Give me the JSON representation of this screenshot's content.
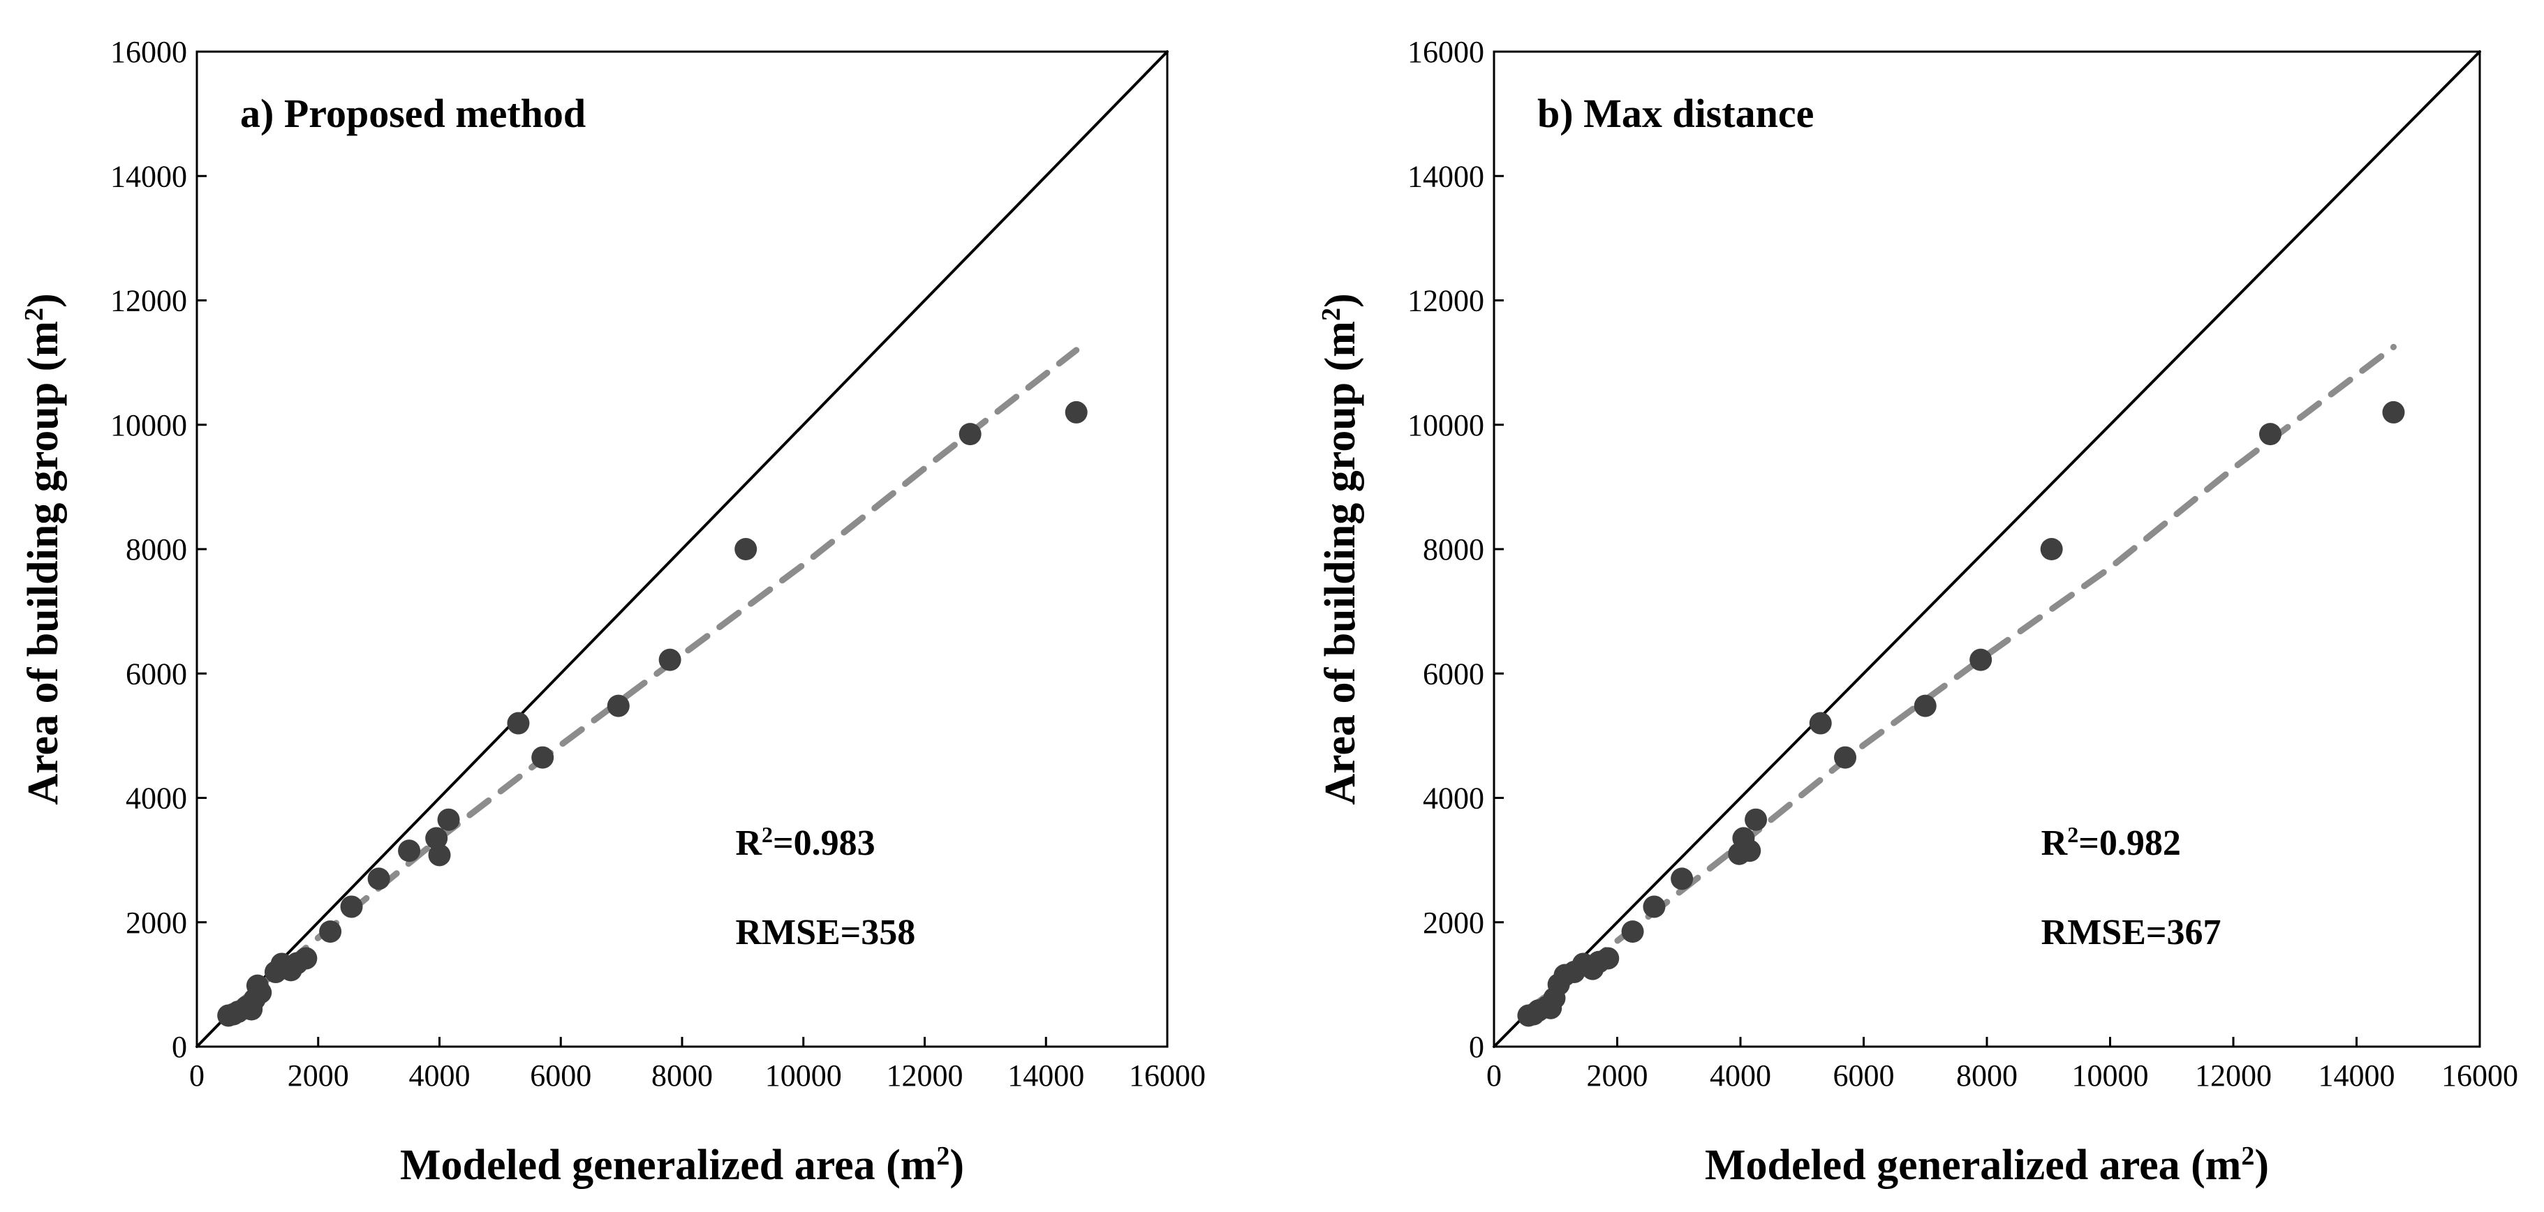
{
  "chart_data": [
    {
      "type": "scatter",
      "title": "a) Proposed method",
      "xlabel": "Modeled generalized area (m",
      "xlabel_sup": "2",
      "xlabel_end": ")",
      "ylabel": "Area of building group (m",
      "ylabel_sup": "2",
      "ylabel_end": ")",
      "xlim": [
        0,
        16000
      ],
      "ylim": [
        0,
        16000
      ],
      "xticks": [
        "0",
        "2000",
        "4000",
        "6000",
        "8000",
        "10000",
        "12000",
        "14000",
        "16000"
      ],
      "yticks": [
        "0",
        "2000",
        "4000",
        "6000",
        "8000",
        "10000",
        "12000",
        "14000",
        "16000"
      ],
      "r2_prefix": "R",
      "r2_sup": "2",
      "r2_value": "=0.983",
      "rmse": "RMSE=358",
      "points": [
        [
          520,
          500
        ],
        [
          600,
          520
        ],
        [
          680,
          560
        ],
        [
          820,
          640
        ],
        [
          900,
          600
        ],
        [
          950,
          760
        ],
        [
          1000,
          980
        ],
        [
          1050,
          870
        ],
        [
          1300,
          1200
        ],
        [
          1400,
          1330
        ],
        [
          1550,
          1230
        ],
        [
          1650,
          1340
        ],
        [
          1800,
          1420
        ],
        [
          2200,
          1850
        ],
        [
          2550,
          2250
        ],
        [
          3000,
          2700
        ],
        [
          3500,
          3150
        ],
        [
          3950,
          3350
        ],
        [
          4000,
          3080
        ],
        [
          4150,
          3650
        ],
        [
          5300,
          5200
        ],
        [
          5700,
          4650
        ],
        [
          6950,
          5480
        ],
        [
          7800,
          6220
        ],
        [
          9050,
          8000
        ],
        [
          12750,
          9850
        ],
        [
          14500,
          10200
        ]
      ],
      "series": [
        {
          "name": "1:1 line",
          "style": "solid",
          "color": "#000000",
          "values": [
            [
              0,
              0
            ],
            [
              16000,
              16000
            ]
          ]
        },
        {
          "name": "fit",
          "style": "dashed",
          "color": "#8c8c8c",
          "values": [
            [
              500,
              550
            ],
            [
              2000,
              1750
            ],
            [
              4000,
              3350
            ],
            [
              6000,
              4850
            ],
            [
              8000,
              6300
            ],
            [
              10000,
              7750
            ],
            [
              12000,
              9300
            ],
            [
              14500,
              11200
            ]
          ]
        }
      ],
      "marker_color": "#3f3f3f"
    },
    {
      "type": "scatter",
      "title": "b) Max distance",
      "xlabel": "Modeled generalized area (m",
      "xlabel_sup": "2",
      "xlabel_end": ")",
      "ylabel": "Area of building group (m",
      "ylabel_sup": "2",
      "ylabel_end": ")",
      "xlim": [
        0,
        16000
      ],
      "ylim": [
        0,
        16000
      ],
      "xticks": [
        "0",
        "2000",
        "4000",
        "6000",
        "8000",
        "10000",
        "12000",
        "14000",
        "16000"
      ],
      "yticks": [
        "0",
        "2000",
        "4000",
        "6000",
        "8000",
        "10000",
        "12000",
        "14000",
        "16000"
      ],
      "r2_prefix": "R",
      "r2_sup": "2",
      "r2_value": "=0.982",
      "rmse": "RMSE=367",
      "points": [
        [
          560,
          500
        ],
        [
          640,
          520
        ],
        [
          720,
          580
        ],
        [
          860,
          640
        ],
        [
          920,
          620
        ],
        [
          980,
          780
        ],
        [
          1050,
          1000
        ],
        [
          1150,
          1150
        ],
        [
          1300,
          1200
        ],
        [
          1450,
          1330
        ],
        [
          1600,
          1250
        ],
        [
          1700,
          1360
        ],
        [
          1850,
          1420
        ],
        [
          2250,
          1850
        ],
        [
          2600,
          2250
        ],
        [
          3050,
          2700
        ],
        [
          3980,
          3100
        ],
        [
          4050,
          3350
        ],
        [
          4150,
          3150
        ],
        [
          4250,
          3650
        ],
        [
          5300,
          5200
        ],
        [
          5700,
          4650
        ],
        [
          7000,
          5480
        ],
        [
          7900,
          6220
        ],
        [
          9050,
          8000
        ],
        [
          12600,
          9850
        ],
        [
          14600,
          10200
        ]
      ],
      "series": [
        {
          "name": "1:1 line",
          "style": "solid",
          "color": "#000000",
          "values": [
            [
              0,
              0
            ],
            [
              16000,
              16000
            ]
          ]
        },
        {
          "name": "fit",
          "style": "dashed",
          "color": "#8c8c8c",
          "values": [
            [
              500,
              550
            ],
            [
              2000,
              1700
            ],
            [
              4000,
              3250
            ],
            [
              6000,
              4850
            ],
            [
              8000,
              6300
            ],
            [
              10000,
              7700
            ],
            [
              12000,
              9300
            ],
            [
              14600,
              11250
            ]
          ]
        }
      ],
      "marker_color": "#3f3f3f"
    }
  ]
}
